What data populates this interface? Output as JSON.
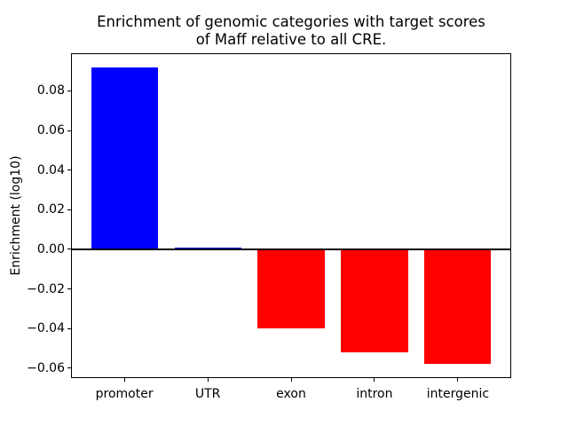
{
  "figure": {
    "background": "#ffffff"
  },
  "chart_data": {
    "type": "bar",
    "title": "Enrichment of genomic categories with target scores\nof Maff relative to all CRE.",
    "xlabel": "",
    "ylabel": "Enrichment (log10)",
    "categories": [
      "promoter",
      "UTR",
      "exon",
      "intron",
      "intergenic"
    ],
    "values": [
      0.092,
      0.001,
      -0.04,
      -0.052,
      -0.058
    ],
    "colors": [
      "#0000ff",
      "#0000ff",
      "#ff0000",
      "#ff0000",
      "#ff0000"
    ],
    "positive_color": "#0000ff",
    "negative_color": "#ff0000",
    "ylim": [
      -0.065,
      0.099
    ],
    "yticks": [
      0.08,
      0.06,
      0.04,
      0.02,
      0.0,
      -0.02,
      -0.04,
      -0.06
    ],
    "ytick_labels": [
      "0.08",
      "0.06",
      "0.04",
      "0.02",
      "0.00",
      "−0.02",
      "−0.04",
      "−0.06"
    ],
    "bar_width_fraction": 0.8,
    "zero_line": true,
    "zero_line_color": "#000000",
    "grid": false,
    "legend": null,
    "axis_color": "#000000",
    "text_color": "#000000"
  }
}
